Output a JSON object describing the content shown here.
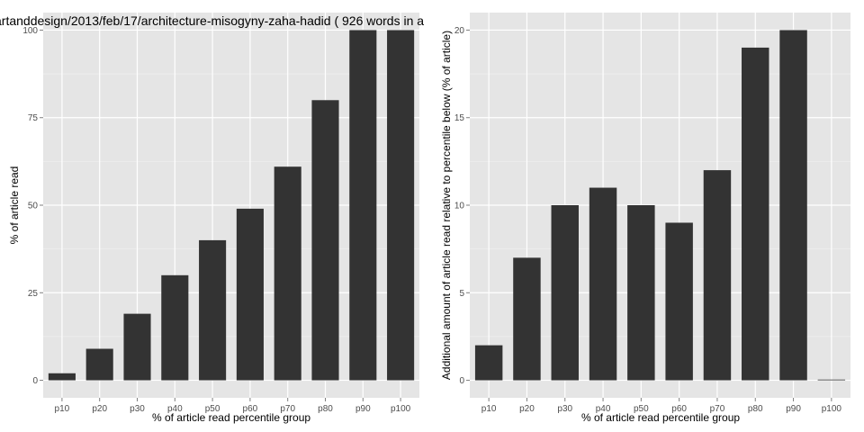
{
  "chart_data": [
    {
      "type": "bar",
      "title": "artanddesign/2013/feb/17/architecture-misogyny-zaha-hadid ( 926 words in a",
      "xlabel": "% of article read percentile group",
      "ylabel": "% of article read",
      "categories": [
        "p10",
        "p20",
        "p30",
        "p40",
        "p50",
        "p60",
        "p70",
        "p80",
        "p90",
        "p100"
      ],
      "values": [
        2,
        9,
        19,
        30,
        40,
        49,
        61,
        80,
        100,
        100
      ],
      "ylim": [
        -5,
        105
      ],
      "yticks": [
        0,
        25,
        50,
        75,
        100
      ],
      "grid": true
    },
    {
      "type": "bar",
      "title": "",
      "xlabel": "% of article read percentile group",
      "ylabel": "Additional amount of article read relative to percentile below (% of article)",
      "categories": [
        "p10",
        "p20",
        "p30",
        "p40",
        "p50",
        "p60",
        "p70",
        "p80",
        "p90",
        "p100"
      ],
      "values": [
        2,
        7,
        10,
        11,
        10,
        9,
        12,
        19,
        20,
        0
      ],
      "ylim": [
        -1,
        21
      ],
      "yticks": [
        0,
        5,
        10,
        15,
        20
      ],
      "grid": true
    }
  ],
  "colors": {
    "panel_background": "#e5e5e5",
    "grid_major": "#ffffff",
    "grid_minor": "#f2f2f2",
    "bar_fill": "#333333",
    "tick_text": "#4d4d4d"
  }
}
